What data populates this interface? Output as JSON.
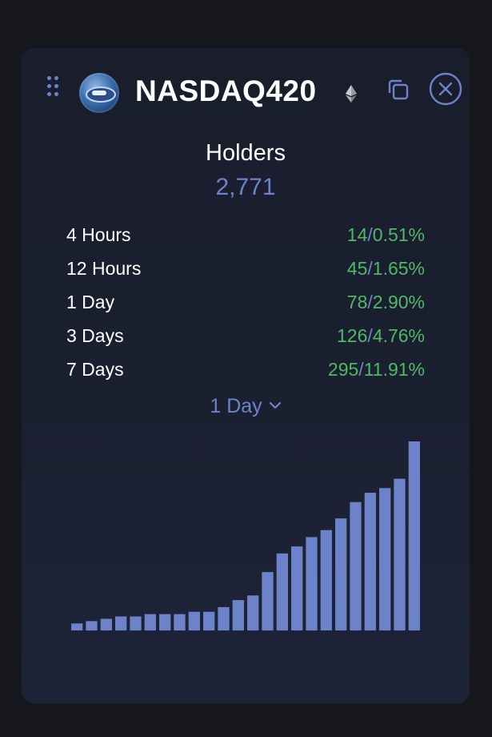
{
  "token": {
    "name": "NASDAQ420",
    "logo_icon": "nasdaq420-token-logo",
    "chain_icon": "ethereum-icon"
  },
  "header_icons": {
    "drag": "drag-handle-icon",
    "copy": "copy-icon",
    "close": "close-circle-icon"
  },
  "holders": {
    "label": "Holders",
    "value": "2,771"
  },
  "changes": [
    {
      "period": "4 Hours",
      "count": "14",
      "percent": "0.51%"
    },
    {
      "period": "12 Hours",
      "count": "45",
      "percent": "1.65%"
    },
    {
      "period": "1 Day",
      "count": "78",
      "percent": "2.90%"
    },
    {
      "period": "3 Days",
      "count": "126",
      "percent": "4.76%"
    },
    {
      "period": "7 Days",
      "count": "295",
      "percent": "11.91%"
    }
  ],
  "range_selector": {
    "selected": "1 Day",
    "icon": "chevron-down-icon"
  },
  "colors": {
    "accent": "#6c83c9",
    "positive": "#4fb964",
    "bar": "#6c83c9",
    "card_bg": "#1b2031",
    "page_bg": "#16161d"
  },
  "chart_data": {
    "type": "bar",
    "values": [
      2693,
      2694,
      2695,
      2696,
      2696,
      2697,
      2697,
      2697,
      2698,
      2698,
      2700,
      2703,
      2705,
      2715,
      2723,
      2726,
      2730,
      2733,
      2738,
      2745,
      2749,
      2751,
      2755,
      2771
    ],
    "ylim": [
      2690,
      2771
    ],
    "grid": false,
    "legend": "none"
  }
}
